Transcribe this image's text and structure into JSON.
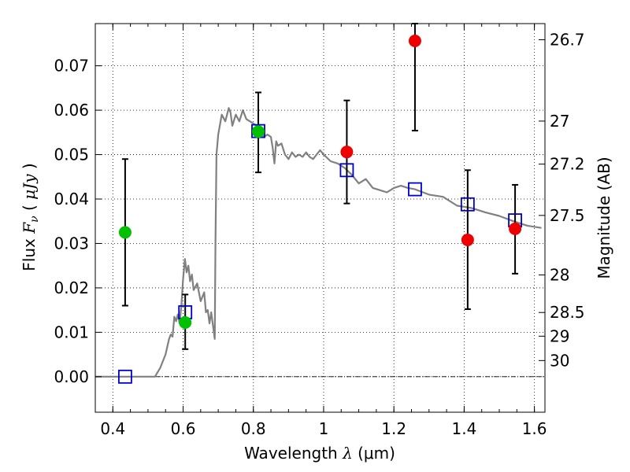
{
  "chart_data": {
    "type": "scatter",
    "xlabel": "Wavelength  λ (μm)",
    "xlabel_parts": {
      "text": "Wavelength  ",
      "symbol": "λ",
      "unit": " (μm)"
    },
    "ylabel": "Flux  Fν  ( μJy )",
    "ylabel_parts": {
      "text": "Flux  ",
      "symbol": "F",
      "subscript": "ν",
      "unit_open": "  ( ",
      "unit": "μJy",
      "unit_close": " )"
    },
    "y2label": "Magnitude (AB)",
    "xlim": [
      0.35,
      1.63
    ],
    "ylim": [
      -0.008,
      0.0795
    ],
    "grid": true,
    "x_ticks": [
      {
        "value": 0.4,
        "label": "0.4"
      },
      {
        "value": 0.6,
        "label": "0.6"
      },
      {
        "value": 0.8,
        "label": "0.8"
      },
      {
        "value": 1.0,
        "label": "1"
      },
      {
        "value": 1.2,
        "label": "1.2"
      },
      {
        "value": 1.4,
        "label": "1.4"
      },
      {
        "value": 1.6,
        "label": "1.6"
      }
    ],
    "y_ticks": [
      {
        "value": 0.0,
        "label": "0.00"
      },
      {
        "value": 0.01,
        "label": "0.01"
      },
      {
        "value": 0.02,
        "label": "0.02"
      },
      {
        "value": 0.03,
        "label": "0.03"
      },
      {
        "value": 0.04,
        "label": "0.04"
      },
      {
        "value": 0.05,
        "label": "0.05"
      },
      {
        "value": 0.06,
        "label": "0.06"
      },
      {
        "value": 0.07,
        "label": "0.07"
      }
    ],
    "y2_ticks": [
      {
        "value": 26.7,
        "label": "26.7"
      },
      {
        "value": 27.0,
        "label": "27"
      },
      {
        "value": 27.2,
        "label": "27.2"
      },
      {
        "value": 27.5,
        "label": "27.5"
      },
      {
        "value": 28.0,
        "label": "28"
      },
      {
        "value": 28.5,
        "label": "28.5"
      },
      {
        "value": 29.0,
        "label": "29"
      },
      {
        "value": 30.0,
        "label": "30"
      }
    ],
    "zero_line": 0.0,
    "colors": {
      "sed": "#808080",
      "model": "#0000cc",
      "green": "#00c000",
      "red": "#ee0000",
      "errorbar": "#000000"
    },
    "sed_curve": [
      [
        0.35,
        0.0
      ],
      [
        0.52,
        0.0
      ],
      [
        0.535,
        0.002
      ],
      [
        0.55,
        0.005
      ],
      [
        0.56,
        0.0085
      ],
      [
        0.565,
        0.0095
      ],
      [
        0.57,
        0.009
      ],
      [
        0.575,
        0.0135
      ],
      [
        0.58,
        0.0125
      ],
      [
        0.585,
        0.014
      ],
      [
        0.59,
        0.012
      ],
      [
        0.595,
        0.016
      ],
      [
        0.6,
        0.022
      ],
      [
        0.605,
        0.0265
      ],
      [
        0.61,
        0.0235
      ],
      [
        0.615,
        0.025
      ],
      [
        0.62,
        0.0215
      ],
      [
        0.625,
        0.023
      ],
      [
        0.63,
        0.0195
      ],
      [
        0.64,
        0.021
      ],
      [
        0.65,
        0.017
      ],
      [
        0.66,
        0.019
      ],
      [
        0.665,
        0.0145
      ],
      [
        0.67,
        0.015
      ],
      [
        0.675,
        0.012
      ],
      [
        0.68,
        0.0145
      ],
      [
        0.69,
        0.0085
      ],
      [
        0.692,
        0.03
      ],
      [
        0.695,
        0.05
      ],
      [
        0.7,
        0.0545
      ],
      [
        0.71,
        0.059
      ],
      [
        0.72,
        0.0575
      ],
      [
        0.73,
        0.0605
      ],
      [
        0.735,
        0.0595
      ],
      [
        0.74,
        0.0565
      ],
      [
        0.75,
        0.059
      ],
      [
        0.76,
        0.0575
      ],
      [
        0.77,
        0.06
      ],
      [
        0.78,
        0.058
      ],
      [
        0.79,
        0.0575
      ],
      [
        0.8,
        0.057
      ],
      [
        0.81,
        0.0565
      ],
      [
        0.82,
        0.055
      ],
      [
        0.83,
        0.054
      ],
      [
        0.84,
        0.0545
      ],
      [
        0.85,
        0.054
      ],
      [
        0.855,
        0.0515
      ],
      [
        0.86,
        0.048
      ],
      [
        0.865,
        0.053
      ],
      [
        0.87,
        0.052
      ],
      [
        0.88,
        0.0525
      ],
      [
        0.89,
        0.05
      ],
      [
        0.9,
        0.049
      ],
      [
        0.91,
        0.0505
      ],
      [
        0.92,
        0.0495
      ],
      [
        0.93,
        0.05
      ],
      [
        0.94,
        0.0495
      ],
      [
        0.95,
        0.0505
      ],
      [
        0.96,
        0.0495
      ],
      [
        0.97,
        0.049
      ],
      [
        0.98,
        0.05
      ],
      [
        0.99,
        0.051
      ],
      [
        1.0,
        0.05
      ],
      [
        1.02,
        0.0485
      ],
      [
        1.04,
        0.048
      ],
      [
        1.06,
        0.047
      ],
      [
        1.08,
        0.0455
      ],
      [
        1.1,
        0.0435
      ],
      [
        1.12,
        0.0445
      ],
      [
        1.14,
        0.0425
      ],
      [
        1.16,
        0.042
      ],
      [
        1.18,
        0.0415
      ],
      [
        1.2,
        0.0425
      ],
      [
        1.22,
        0.043
      ],
      [
        1.24,
        0.0425
      ],
      [
        1.26,
        0.0422
      ],
      [
        1.3,
        0.041
      ],
      [
        1.34,
        0.0405
      ],
      [
        1.38,
        0.0385
      ],
      [
        1.42,
        0.038
      ],
      [
        1.44,
        0.0375
      ],
      [
        1.46,
        0.037
      ],
      [
        1.5,
        0.0362
      ],
      [
        1.54,
        0.035
      ],
      [
        1.58,
        0.034
      ],
      [
        1.62,
        0.0335
      ]
    ],
    "model_points": [
      {
        "x": 0.435,
        "y": 0.0
      },
      {
        "x": 0.606,
        "y": 0.0145
      },
      {
        "x": 0.814,
        "y": 0.0553
      },
      {
        "x": 1.066,
        "y": 0.0465
      },
      {
        "x": 1.26,
        "y": 0.0422
      },
      {
        "x": 1.41,
        "y": 0.0388
      },
      {
        "x": 1.545,
        "y": 0.0352
      }
    ],
    "observations": [
      {
        "x": 0.435,
        "y": 0.0325,
        "err_low": 0.016,
        "err_high": 0.049,
        "color": "green"
      },
      {
        "x": 0.606,
        "y": 0.0122,
        "err_low": 0.0062,
        "err_high": 0.0185,
        "color": "green"
      },
      {
        "x": 0.814,
        "y": 0.0552,
        "err_low": 0.046,
        "err_high": 0.064,
        "color": "green"
      },
      {
        "x": 1.066,
        "y": 0.0506,
        "err_low": 0.039,
        "err_high": 0.0622,
        "color": "red"
      },
      {
        "x": 1.26,
        "y": 0.0756,
        "err_low": 0.0554,
        "err_high": 0.0795,
        "color": "red"
      },
      {
        "x": 1.41,
        "y": 0.0308,
        "err_low": 0.0152,
        "err_high": 0.0465,
        "color": "red"
      },
      {
        "x": 1.545,
        "y": 0.0333,
        "err_low": 0.0232,
        "err_high": 0.0432,
        "color": "red"
      }
    ]
  }
}
